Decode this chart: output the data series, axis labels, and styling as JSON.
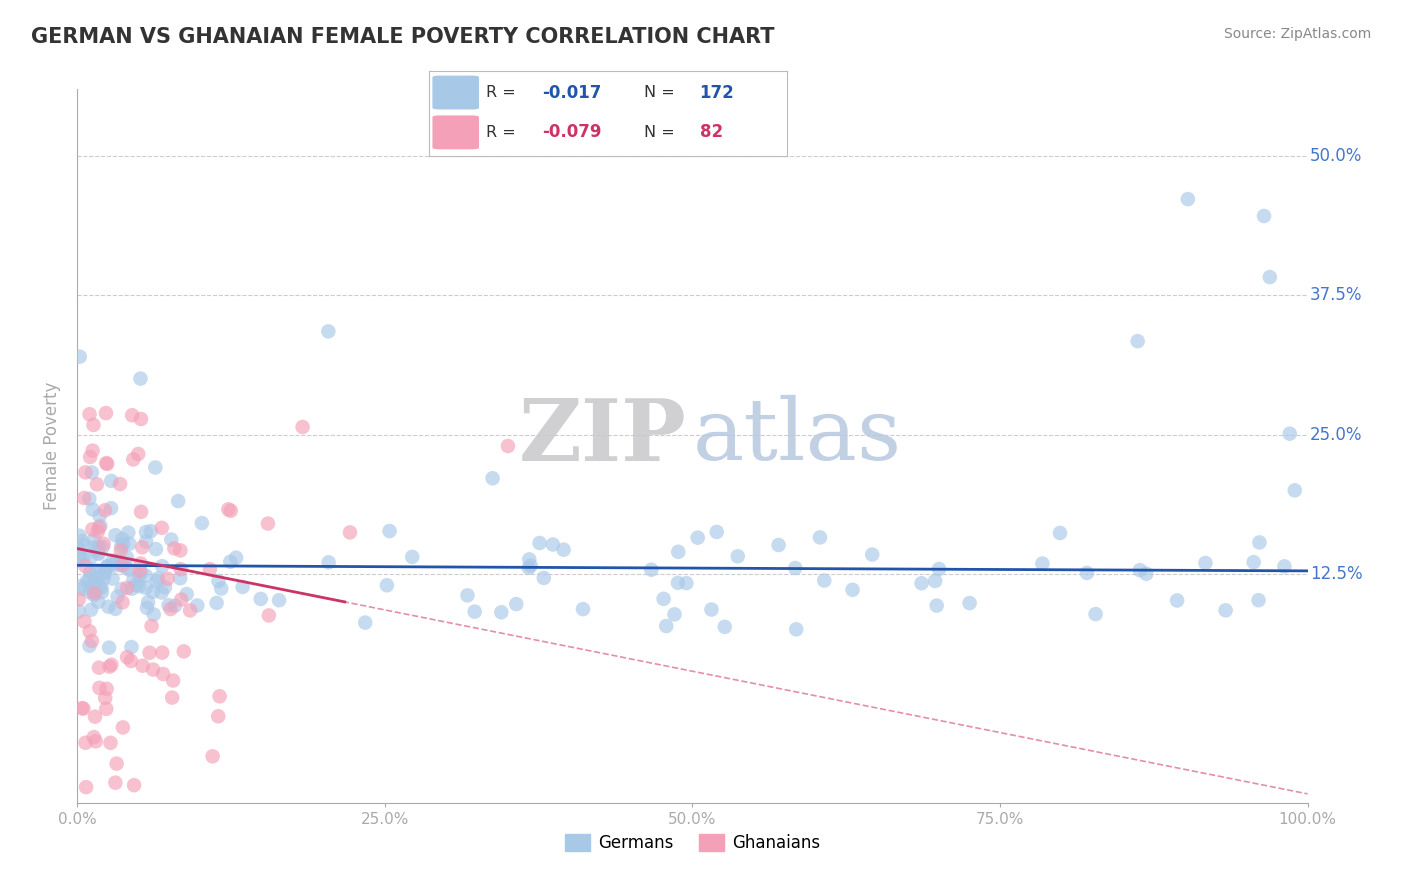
{
  "title": "GERMAN VS GHANAIAN FEMALE POVERTY CORRELATION CHART",
  "source": "Source: ZipAtlas.com",
  "ylabel": "Female Poverty",
  "watermark_zip": "ZIP",
  "watermark_atlas": "atlas",
  "xlim": [
    0.0,
    1.0
  ],
  "ylim": [
    -0.08,
    0.56
  ],
  "xticks": [
    0.0,
    0.25,
    0.5,
    0.75,
    1.0
  ],
  "xtick_labels": [
    "0.0%",
    "25.0%",
    "50.0%",
    "75.0%",
    "100.0%"
  ],
  "ytick_positions": [
    0.125,
    0.25,
    0.375,
    0.5
  ],
  "ytick_labels": [
    "12.5%",
    "25.0%",
    "37.5%",
    "50.0%"
  ],
  "german_color": "#a8c8e8",
  "ghanaian_color": "#f4a0b8",
  "german_line_color": "#2255aa",
  "ghanaian_line_color": "#cc3366",
  "R_german": -0.017,
  "N_german": 172,
  "R_ghanaian": -0.079,
  "N_ghanaian": 82,
  "legend_label_german": "Germans",
  "legend_label_ghanaian": "Ghanaians",
  "title_color": "#333333",
  "axis_color": "#aaaaaa",
  "grid_color": "#cccccc",
  "tick_color": "#4477cc",
  "watermark_zip_color": "#c8c8cc",
  "watermark_atlas_color": "#b8c8e0",
  "source_color": "#888888",
  "background_color": "#ffffff",
  "legend_r_color": "#333333",
  "legend_n_color": "#333333"
}
